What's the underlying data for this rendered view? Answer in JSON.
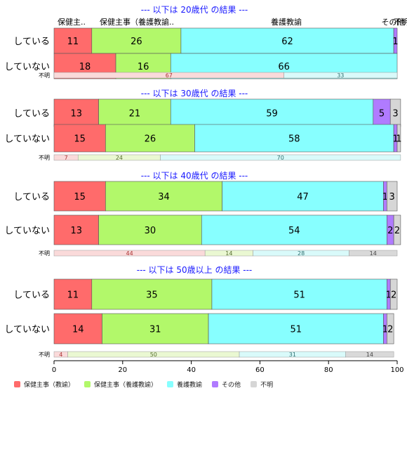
{
  "chart_data": {
    "type": "bar",
    "orientation": "horizontal",
    "stacked": true,
    "xlim": [
      0,
      100
    ],
    "x_ticks": [
      "0",
      "20",
      "40",
      "60",
      "80",
      "100"
    ],
    "categories_labels": [
      "保健主事（教諭）",
      "保健主事（養護教諭）",
      "養護教諭",
      "その他",
      "不明"
    ],
    "colors": [
      "#ff6b6b",
      "#b2f86a",
      "#87ffff",
      "#b07bff",
      "#d6d6d6"
    ],
    "top_labels": [
      "保健主..",
      "保健主事（養護教諭..",
      "養護教諭",
      "その他",
      "不明"
    ],
    "panels": [
      {
        "title": "--- 以下は 20歳代 の結果 ---",
        "rows": [
          {
            "label": "している",
            "values": [
              11,
              26,
              62,
              1,
              0
            ]
          },
          {
            "label": "していない",
            "values": [
              18,
              16,
              66,
              0,
              0
            ]
          }
        ],
        "unknown": {
          "label": "不明",
          "values": [
            67,
            0,
            33,
            0,
            0
          ]
        }
      },
      {
        "title": "--- 以下は 30歳代 の結果 ---",
        "rows": [
          {
            "label": "している",
            "values": [
              13,
              21,
              59,
              5,
              3
            ]
          },
          {
            "label": "していない",
            "values": [
              15,
              26,
              58,
              1,
              1
            ]
          }
        ],
        "unknown": {
          "label": "不明",
          "values": [
            7,
            24,
            70,
            0,
            0
          ]
        }
      },
      {
        "title": "--- 以下は 40歳代 の結果 ---",
        "rows": [
          {
            "label": "している",
            "values": [
              15,
              34,
              47,
              1,
              3
            ]
          },
          {
            "label": "していない",
            "values": [
              13,
              30,
              54,
              2,
              2
            ]
          }
        ],
        "unknown": {
          "label": "不明",
          "values": [
            44,
            14,
            28,
            0,
            14
          ]
        }
      },
      {
        "title": "--- 以下は 50歳以上 の結果 ---",
        "rows": [
          {
            "label": "している",
            "values": [
              11,
              35,
              51,
              1,
              2
            ]
          },
          {
            "label": "していない",
            "values": [
              14,
              31,
              51,
              1,
              2
            ]
          }
        ],
        "unknown": {
          "label": "不明",
          "values": [
            4,
            50,
            31,
            0,
            14
          ]
        }
      }
    ]
  },
  "legend": {
    "items": [
      "保健主事（教諭）",
      "保健主事（養護教諭）",
      "養護教諭",
      "その他",
      "不明"
    ]
  }
}
